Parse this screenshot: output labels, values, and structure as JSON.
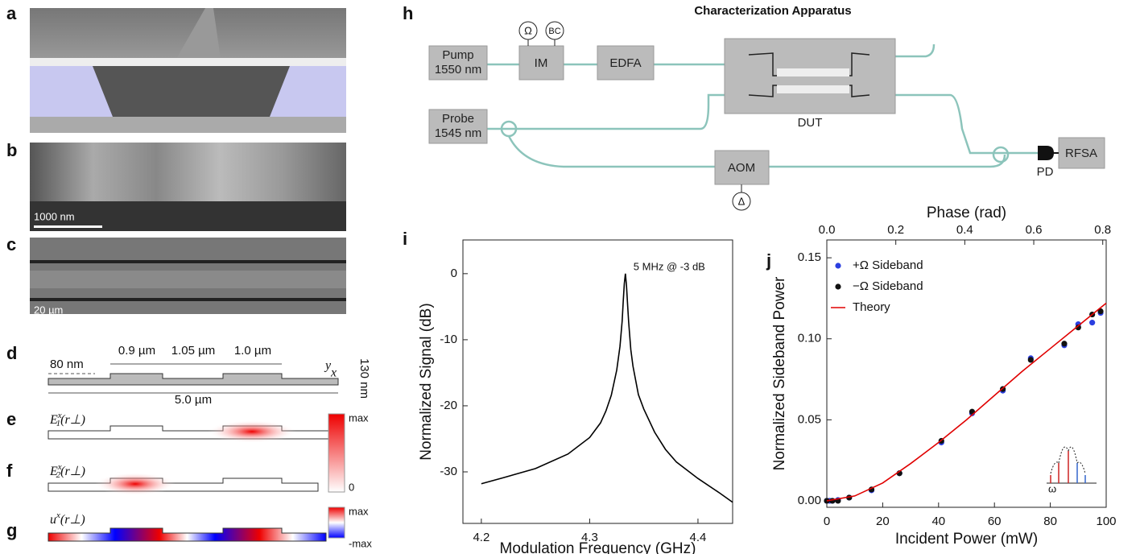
{
  "panel_labels": {
    "a": "a",
    "b": "b",
    "c": "c",
    "d": "d",
    "e": "e",
    "f": "f",
    "g": "g",
    "h": "h",
    "i": "i",
    "j": "j"
  },
  "micrographs": {
    "b_scale": "1000 nm",
    "c_scale": "20 µm"
  },
  "cross_section": {
    "width1": "0.9 µm",
    "gap": "1.05 µm",
    "width2": "1.0 µm",
    "step": "80 nm",
    "height": "130 nm",
    "total": "5.0 µm",
    "axis_y": "y",
    "axis_x": "x"
  },
  "modes": {
    "e": {
      "symbol": "E",
      "sup": "x",
      "sub": "1",
      "arg": "(r⊥)"
    },
    "f": {
      "symbol": "E",
      "sup": "x",
      "sub": "2",
      "arg": "(r⊥)"
    },
    "g": {
      "symbol": "u",
      "sup": "x",
      "arg": "(r⊥)"
    },
    "ef_colorbar": [
      "max",
      "0"
    ],
    "g_colorbar": [
      "max",
      "-max"
    ]
  },
  "diagram": {
    "title": "Characterization Apparatus",
    "pump": [
      "Pump",
      "1550 nm"
    ],
    "probe": [
      "Probe",
      "1545 nm"
    ],
    "im": "IM",
    "omega": "Ω",
    "bc": "BC",
    "edfa": "EDFA",
    "dut": "DUT",
    "aom": "AOM",
    "delta": "Δ",
    "pd": "PD",
    "rfsa": "RFSA"
  },
  "chart_data": [
    {
      "type": "line",
      "xlabel": "Modulation Frequency (GHz)",
      "ylabel": "Normalized Signal (dB)",
      "annotation": "5 MHz @ -3 dB",
      "x": [
        4.2,
        4.22,
        4.25,
        4.28,
        4.3,
        4.31,
        4.315,
        4.32,
        4.325,
        4.328,
        4.33,
        4.331,
        4.332,
        4.333,
        4.334,
        4.335,
        4.336,
        4.338,
        4.34,
        4.345,
        4.35,
        4.36,
        4.37,
        4.38,
        4.4,
        4.42,
        4.432
      ],
      "series": [
        {
          "name": "Signal",
          "color": "#000000",
          "values": [
            -31.8,
            -30.9,
            -29.5,
            -27.3,
            -24.8,
            -22.6,
            -20.8,
            -18.4,
            -14.6,
            -11,
            -7.2,
            -4.2,
            -1.5,
            0,
            -1.8,
            -4.6,
            -7.3,
            -11.5,
            -14,
            -18.3,
            -20.5,
            -24,
            -26.6,
            -28.5,
            -31,
            -33.2,
            -34.6
          ]
        }
      ],
      "xlim": [
        4.183,
        4.432
      ],
      "ylim": [
        -37.8,
        5.1
      ],
      "xticks": [
        4.2,
        4.3,
        4.4
      ],
      "yticks": [
        0,
        -10,
        -20,
        -30
      ]
    },
    {
      "type": "scatter",
      "xlabel": "Incident Power (mW)",
      "ylabel": "Normalized Sideband Power",
      "x2label": "Phase (rad)",
      "annotations": [
        "ω"
      ],
      "series": [
        {
          "name": "+Ω Sideband",
          "color": "#2b3fe0",
          "x": [
            0,
            1,
            2,
            4,
            8,
            16,
            26,
            41,
            52,
            63,
            73,
            85,
            90,
            95,
            98
          ],
          "values": [
            0,
            0,
            0,
            0.0005,
            0.002,
            0.0065,
            0.017,
            0.036,
            0.054,
            0.068,
            0.088,
            0.096,
            0.109,
            0.11,
            0.116
          ]
        },
        {
          "name": "−Ω Sideband",
          "color": "#111111",
          "x": [
            0,
            2,
            4,
            8,
            16,
            26,
            41,
            52,
            63,
            73,
            85,
            90,
            95,
            98
          ],
          "values": [
            0,
            0,
            0,
            0.002,
            0.007,
            0.017,
            0.037,
            0.055,
            0.069,
            0.087,
            0.097,
            0.107,
            0.115,
            0.117
          ]
        },
        {
          "name": "Theory",
          "color": "#e00000",
          "line": true,
          "x": [
            0,
            10,
            20,
            30,
            40,
            50,
            60,
            70,
            80,
            90,
            100
          ],
          "values": [
            0,
            0.003,
            0.011,
            0.023,
            0.036,
            0.05,
            0.065,
            0.08,
            0.094,
            0.108,
            0.122
          ]
        }
      ],
      "xlim": [
        0,
        100
      ],
      "ylim": [
        -0.004,
        0.161
      ],
      "x2lim": [
        0,
        0.81
      ],
      "xticks": [
        0,
        20,
        40,
        60,
        80,
        100
      ],
      "yticks": [
        {
          "value": 0,
          "label": "0.00"
        },
        {
          "value": 0.05,
          "label": "0.05"
        },
        {
          "value": 0.1,
          "label": "0.10"
        },
        {
          "value": 0.15,
          "label": "0.15"
        }
      ],
      "x2ticks": [
        {
          "value": 0,
          "label": "0.0"
        },
        0.2,
        0.4,
        0.6,
        0.8
      ]
    }
  ]
}
